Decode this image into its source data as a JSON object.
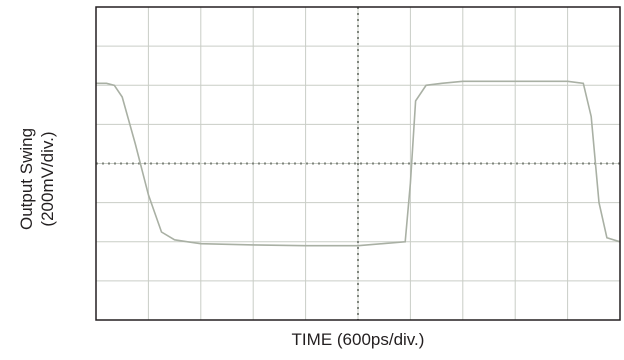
{
  "chart_data": {
    "type": "line",
    "xlabel": "TIME (600ps/div.)",
    "ylabel_line1": "Output Swing",
    "ylabel_line2": "(200mV/div.)",
    "x_divisions": 10,
    "y_divisions": 8,
    "x_per_div_ps": 600,
    "y_per_div_mV": 200,
    "grid": true,
    "series": [
      {
        "values_note": "",
        "x_div": [
          0,
          0.2,
          0.35,
          0.5,
          0.75,
          1.0,
          1.25,
          1.5,
          1.75,
          2.0,
          3.0,
          4.0,
          5.0,
          5.9,
          6.0,
          6.1,
          6.3,
          6.6,
          7.0,
          8.0,
          9.0,
          9.3,
          9.45,
          9.6,
          9.75,
          10.0
        ],
        "y_div": [
          2.05,
          2.05,
          2.0,
          1.7,
          0.5,
          -0.8,
          -1.75,
          -1.95,
          -2.0,
          -2.05,
          -2.08,
          -2.1,
          -2.1,
          -2.0,
          -0.5,
          1.6,
          2.0,
          2.05,
          2.1,
          2.1,
          2.1,
          2.05,
          1.2,
          -1.0,
          -1.9,
          -2.0
        ]
      }
    ]
  }
}
